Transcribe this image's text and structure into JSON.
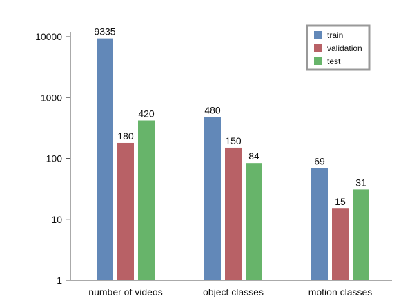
{
  "chart_data": {
    "type": "bar",
    "yscale": "log",
    "ylim": [
      1,
      10000
    ],
    "yticks": [
      1,
      10,
      100,
      1000,
      10000
    ],
    "ytick_labels": [
      "1",
      "10",
      "100",
      "1000",
      "10000"
    ],
    "categories": [
      "number of videos",
      "object classes",
      "motion classes"
    ],
    "series": [
      {
        "name": "train",
        "color": "#6288b8",
        "values": [
          9335,
          480,
          69
        ]
      },
      {
        "name": "validation",
        "color": "#b86166",
        "values": [
          180,
          150,
          15
        ]
      },
      {
        "name": "test",
        "color": "#67b46a",
        "values": [
          420,
          84,
          31
        ]
      }
    ],
    "legend_position": "top-right",
    "grid": false
  }
}
